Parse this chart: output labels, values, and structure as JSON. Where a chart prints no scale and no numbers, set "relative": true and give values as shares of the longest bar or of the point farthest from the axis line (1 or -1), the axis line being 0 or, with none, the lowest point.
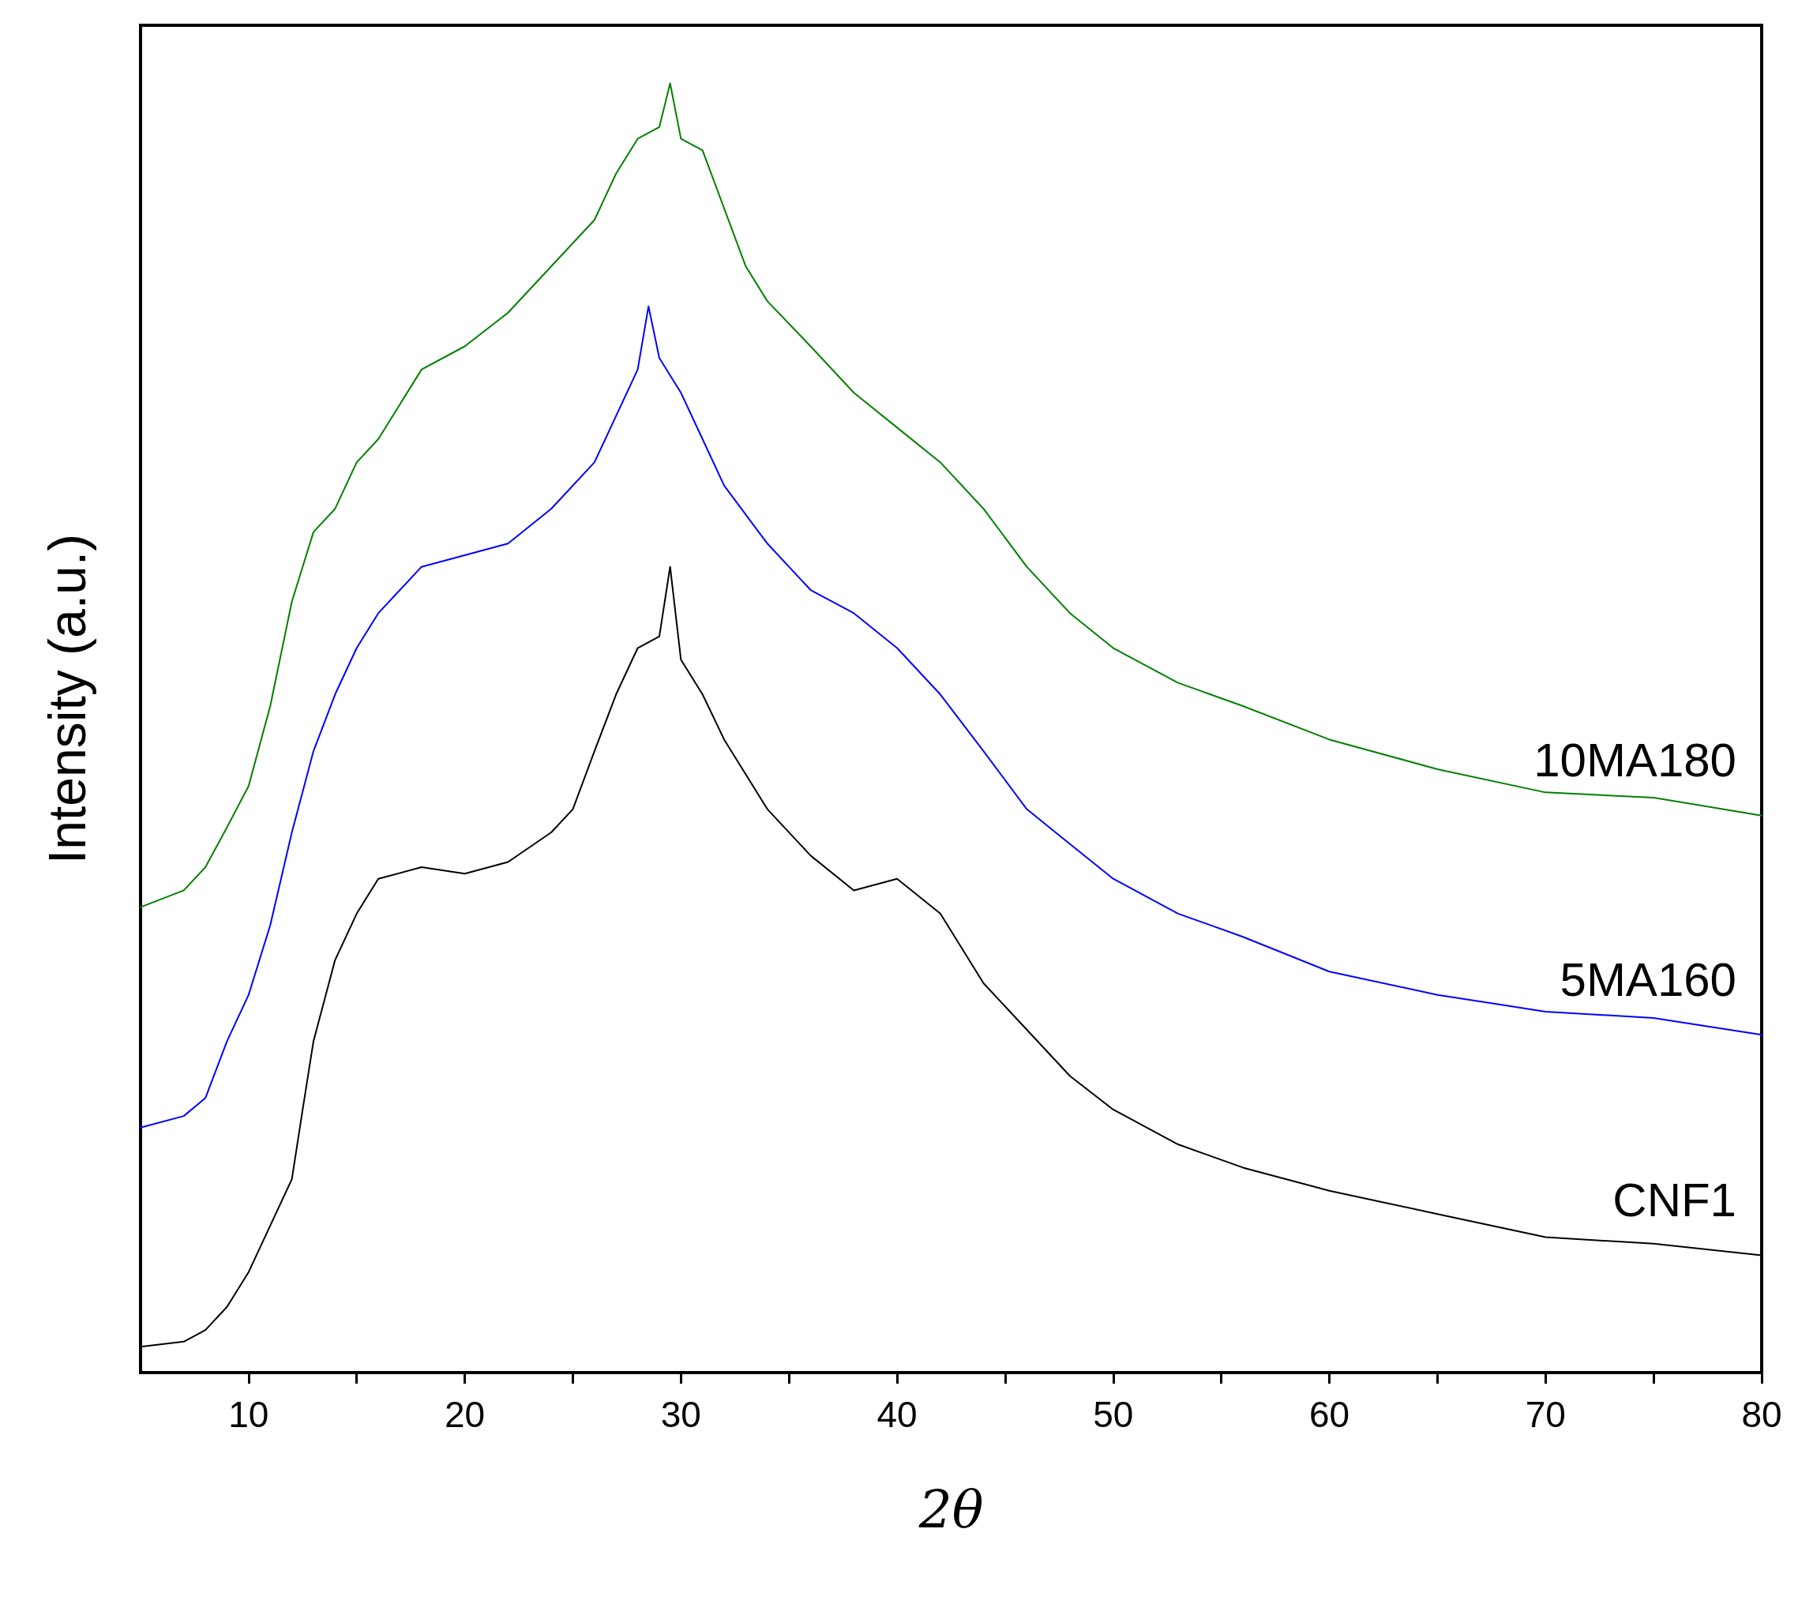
{
  "chart_data": {
    "type": "line",
    "relative": true,
    "xlabel": "2θ",
    "ylabel": "Intensity (a.u.)",
    "xlim": [
      5,
      80
    ],
    "xticks": [
      10,
      {
        "value": 15,
        "label": null
      },
      20,
      {
        "value": 25,
        "label": null
      },
      30,
      {
        "value": 35,
        "label": null
      },
      40,
      {
        "value": 45,
        "label": null
      },
      50,
      {
        "value": 55,
        "label": null
      },
      60,
      {
        "value": 65,
        "label": null
      },
      70,
      {
        "value": 75,
        "label": null
      },
      80
    ],
    "grid": false,
    "legend": false,
    "marker": "none",
    "line_style": "solid",
    "series": [
      {
        "name": "CNF1",
        "color": "#000000",
        "x": [
          5,
          7,
          8,
          9,
          10,
          11,
          12,
          12.5,
          13,
          14,
          15,
          16,
          18,
          20,
          22,
          24,
          25,
          26,
          27,
          28,
          29,
          29.5,
          30,
          31,
          32,
          34,
          36,
          38,
          40,
          42,
          44,
          46,
          48,
          50,
          53,
          56,
          60,
          65,
          70,
          75,
          80
        ],
        "values": [
          0.02,
          0.024,
          0.033,
          0.051,
          0.078,
          0.114,
          0.15,
          0.204,
          0.257,
          0.32,
          0.356,
          0.383,
          0.392,
          0.387,
          0.396,
          0.419,
          0.437,
          0.482,
          0.526,
          0.562,
          0.571,
          0.625,
          0.553,
          0.526,
          0.491,
          0.437,
          0.401,
          0.374,
          0.383,
          0.356,
          0.302,
          0.266,
          0.23,
          0.204,
          0.177,
          0.159,
          0.141,
          0.123,
          0.105,
          0.1,
          0.091
        ]
      },
      {
        "name": "5MA160",
        "color": "#0000ff",
        "x": [
          5,
          7,
          8,
          9,
          10,
          11,
          12,
          13,
          14,
          15,
          16,
          18,
          20,
          22,
          24,
          26,
          27,
          28,
          28.5,
          29,
          30,
          31,
          32,
          34,
          36,
          38,
          40,
          42,
          44,
          46,
          48,
          50,
          53,
          56,
          60,
          65,
          70,
          75,
          80
        ],
        "values": [
          0.19,
          0.199,
          0.213,
          0.257,
          0.293,
          0.347,
          0.419,
          0.482,
          0.526,
          0.562,
          0.589,
          0.625,
          0.634,
          0.643,
          0.67,
          0.706,
          0.742,
          0.778,
          0.827,
          0.787,
          0.76,
          0.724,
          0.688,
          0.643,
          0.607,
          0.589,
          0.562,
          0.526,
          0.482,
          0.437,
          0.41,
          0.383,
          0.356,
          0.338,
          0.311,
          0.293,
          0.28,
          0.275,
          0.262
        ]
      },
      {
        "name": "10MA180",
        "color": "#008000",
        "x": [
          5,
          7,
          8,
          9,
          10,
          11,
          12,
          13,
          14,
          15,
          16,
          17,
          18,
          20,
          22,
          24,
          26,
          27,
          28,
          29,
          29.5,
          30,
          31,
          32,
          33,
          34,
          36,
          38,
          40,
          42,
          44,
          46,
          48,
          50,
          53,
          56,
          60,
          65,
          70,
          75,
          80
        ],
        "values": [
          0.361,
          0.374,
          0.392,
          0.423,
          0.455,
          0.517,
          0.598,
          0.652,
          0.67,
          0.706,
          0.724,
          0.751,
          0.778,
          0.796,
          0.822,
          0.858,
          0.894,
          0.93,
          0.957,
          0.966,
          1.0,
          0.957,
          0.948,
          0.903,
          0.858,
          0.831,
          0.796,
          0.76,
          0.733,
          0.706,
          0.67,
          0.625,
          0.589,
          0.562,
          0.535,
          0.517,
          0.491,
          0.468,
          0.45,
          0.446,
          0.432
        ]
      }
    ]
  }
}
